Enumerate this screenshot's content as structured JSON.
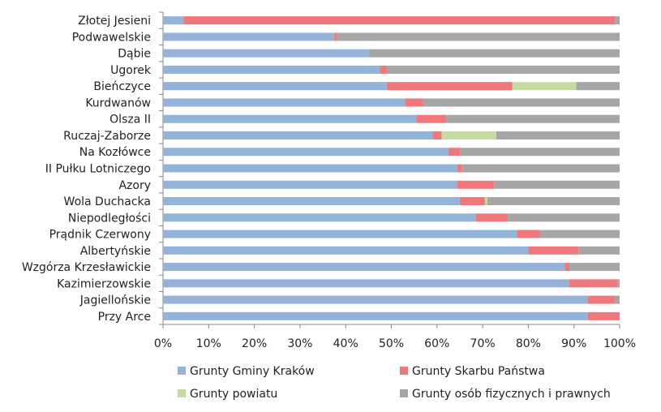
{
  "chart_data": {
    "type": "bar",
    "orientation": "horizontal",
    "stacked": "percent",
    "categories": [
      "Złotej Jesieni",
      "Podwawelskie",
      "Dąbie",
      "Ugorek",
      "Bieńczyce",
      "Kurdwanów",
      "Olsza II",
      "Ruczaj-Zaborze",
      "Na Kozłówce",
      "II Pułku Lotniczego",
      "Azory",
      "Wola Duchacka",
      "Niepodległości",
      "Prądnik Czerwony",
      "Albertyńskie",
      "Wzgórza Krzesławickie",
      "Kazimierzowskie",
      "Jagiellońskie",
      "Przy Arce"
    ],
    "series": [
      {
        "name": "Grunty Gminy Kraków",
        "color": "#93b3d8",
        "values": [
          4.5,
          37.5,
          45,
          47.5,
          49,
          53,
          55.5,
          59,
          62.5,
          64.5,
          64.5,
          65,
          68.5,
          77.5,
          80,
          88,
          89,
          93,
          93
        ]
      },
      {
        "name": "Grunty Skarbu Państwa",
        "color": "#f0787a",
        "values": [
          94.5,
          0.5,
          0,
          1.5,
          27.5,
          4,
          6.5,
          2,
          2.5,
          1,
          8,
          5.5,
          7,
          5,
          11,
          1,
          10.5,
          6,
          7
        ]
      },
      {
        "name": "Grunty powiatu",
        "color": "#c5dba3",
        "values": [
          0,
          0,
          0,
          0,
          14,
          0,
          0,
          12,
          0,
          0,
          0,
          0.5,
          0,
          0,
          0,
          0,
          0,
          0,
          0
        ]
      },
      {
        "name": "Grunty osób fizycznych i prawnych",
        "color": "#a6a6a6",
        "values": [
          1,
          62,
          55,
          51,
          9.5,
          43,
          38,
          27,
          35,
          34.5,
          27.5,
          29,
          24.5,
          17.5,
          9,
          11,
          0.5,
          1,
          0
        ]
      }
    ],
    "xlim": [
      0,
      100
    ],
    "xticks": [
      "0%",
      "10%",
      "20%",
      "30%",
      "40%",
      "50%",
      "60%",
      "70%",
      "80%",
      "90%",
      "100%"
    ],
    "title": "",
    "xlabel": "",
    "ylabel": "",
    "grid": false,
    "legend_position": "bottom"
  }
}
